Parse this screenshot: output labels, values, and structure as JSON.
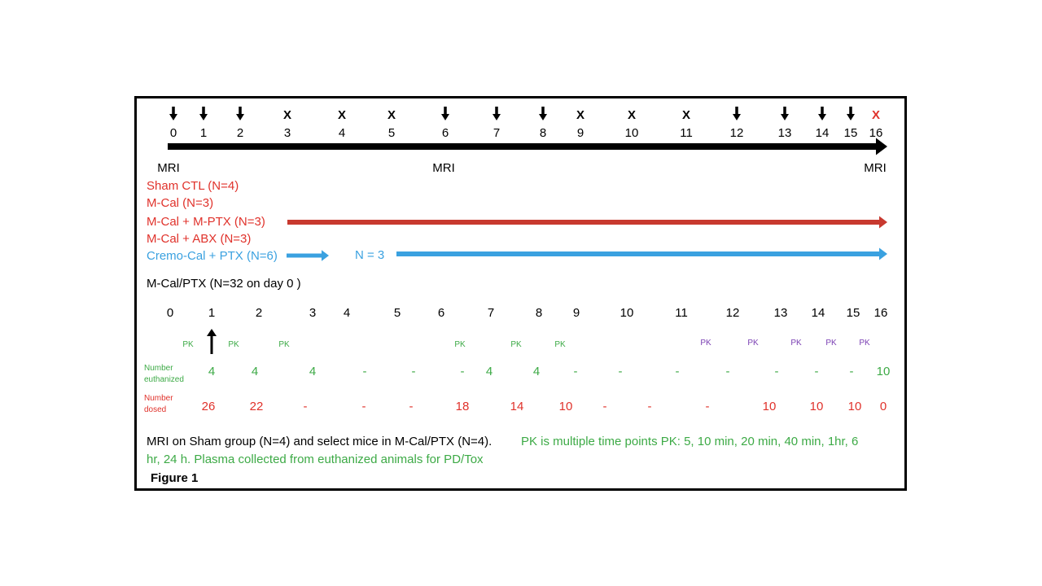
{
  "top_timeline": {
    "days": [
      "0",
      "1",
      "2",
      "3",
      "4",
      "5",
      "6",
      "7",
      "8",
      "9",
      "10",
      "11",
      "12",
      "13",
      "14",
      "15",
      "16"
    ],
    "markers": [
      "down-arrow",
      "down-arrow",
      "down-arrow",
      "x",
      "x",
      "x",
      "down-arrow",
      "down-arrow",
      "down-arrow",
      "x",
      "x",
      "x",
      "down-arrow",
      "down-arrow",
      "down-arrow",
      "down-arrow",
      "x"
    ],
    "marker_x_label": "X",
    "mri_labels": [
      "MRI",
      "MRI",
      "MRI"
    ]
  },
  "groups": {
    "sham": "Sham CTL (N=4)",
    "mcal": "M-Cal (N=3)",
    "mcal_mptx": "M-Cal + M-PTX (N=3)",
    "mcal_abx": "M-Cal + ABX (N=3)",
    "cremo": "Cremo-Cal + PTX (N=6)",
    "cremo_n": "N = 3"
  },
  "mcal_ptx_title": "M-Cal/PTX (N=32 on day 0 )",
  "lower_timeline": {
    "days": [
      "0",
      "1",
      "2",
      "3",
      "4",
      "5",
      "6",
      "7",
      "8",
      "9",
      "10",
      "11",
      "12",
      "13",
      "14",
      "15",
      "16"
    ],
    "pk_green": [
      "PK",
      "PK",
      "PK",
      "PK",
      "PK",
      "PK"
    ],
    "pk_purple": [
      "PK",
      "PK",
      "PK",
      "PK",
      "PK"
    ],
    "euthanized_label": [
      "Number",
      "euthanized"
    ],
    "euthanized_values": [
      "4",
      "4",
      "4",
      "-",
      "-",
      "-",
      "4",
      "4",
      "-",
      "-",
      "-",
      "-",
      "-",
      "-",
      "-",
      "10"
    ],
    "dosed_label": [
      "Number",
      "dosed"
    ],
    "dosed_values": [
      "26",
      "22",
      "-",
      "-",
      "-",
      "18",
      "14",
      "10",
      "-",
      "-",
      "-",
      "10",
      "10",
      "10",
      "0"
    ]
  },
  "footer": {
    "black_text": "MRI on Sham group (N=4) and select mice in M-Cal/PTX (N=4).",
    "green_text_1": "PK is multiple time points PK: 5, 10 min, 20 min, 40 min, 1hr, 6",
    "green_text_2": "hr, 24 h. Plasma collected from euthanized animals for PD/Tox",
    "figure_label": "Figure 1"
  },
  "colors": {
    "red": "#e0322b",
    "blue": "#3aa1e0",
    "green": "#3daa46",
    "purple": "#7a3fb3",
    "red_bar": "#c8392f",
    "black": "#000000"
  }
}
